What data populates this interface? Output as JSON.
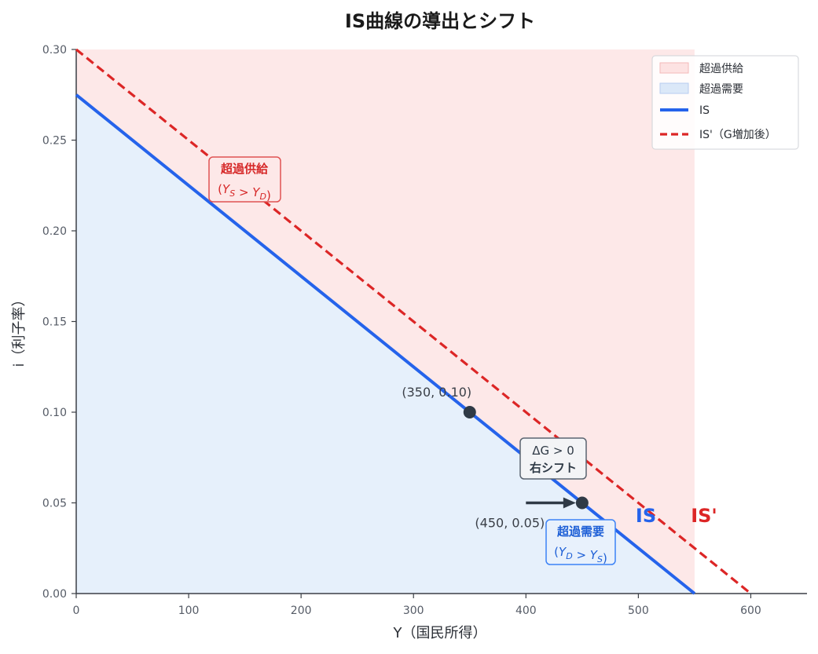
{
  "chart_data": {
    "type": "line",
    "title": "IS曲線の導出とシフト",
    "xlabel": "Y（国民所得）",
    "ylabel": "i（利子率）",
    "xlim": [
      0,
      650
    ],
    "ylim": [
      0,
      0.3
    ],
    "x_ticks": [
      "0",
      "100",
      "200",
      "300",
      "400",
      "500",
      "600"
    ],
    "y_ticks": [
      "0.00",
      "0.05",
      "0.10",
      "0.15",
      "0.20",
      "0.25",
      "0.30"
    ],
    "grid": false,
    "legend_position": "top-right",
    "colors": {
      "is": "#2563eb",
      "is_shifted": "#dc2626",
      "excess_supply_fill": "#fde8e8",
      "excess_demand_fill": "#e6f0fb",
      "point": "#2f3a46"
    },
    "series": [
      {
        "name": "IS",
        "style": "solid",
        "x": [
          0,
          550
        ],
        "y": [
          0.275,
          0.0
        ]
      },
      {
        "name": "IS'（G増加後）",
        "style": "dashed",
        "x": [
          0,
          600
        ],
        "y": [
          0.3,
          0.0
        ]
      }
    ],
    "regions": [
      {
        "name": "超過供給",
        "x_range": [
          0,
          550
        ],
        "description_boundary": "above IS"
      },
      {
        "name": "超過需要",
        "x_range": [
          0,
          550
        ],
        "description_boundary": "below IS"
      }
    ],
    "points": [
      {
        "x": 350,
        "y": 0.1,
        "label": "(350, 0.10)"
      },
      {
        "x": 450,
        "y": 0.05,
        "label": "(450, 0.05)"
      }
    ],
    "shift_arrow": {
      "from_x": 400,
      "to_x": 450,
      "y": 0.05
    },
    "annotations": {
      "supply_box": {
        "line1": "超過供給",
        "line2": "(Y_S > Y_D)"
      },
      "demand_box": {
        "line1": "超過需要",
        "line2": "(Y_D > Y_S)"
      },
      "shift_box": {
        "line1": "ΔG > 0",
        "line2": "右シフト"
      },
      "is_label": "IS",
      "is_shifted_label": "IS'"
    },
    "legend": [
      {
        "label": "超過供給",
        "kind": "patch"
      },
      {
        "label": "超過需要",
        "kind": "patch"
      },
      {
        "label": "IS",
        "kind": "solid"
      },
      {
        "label": "IS'（G増加後）",
        "kind": "dashed"
      }
    ]
  }
}
